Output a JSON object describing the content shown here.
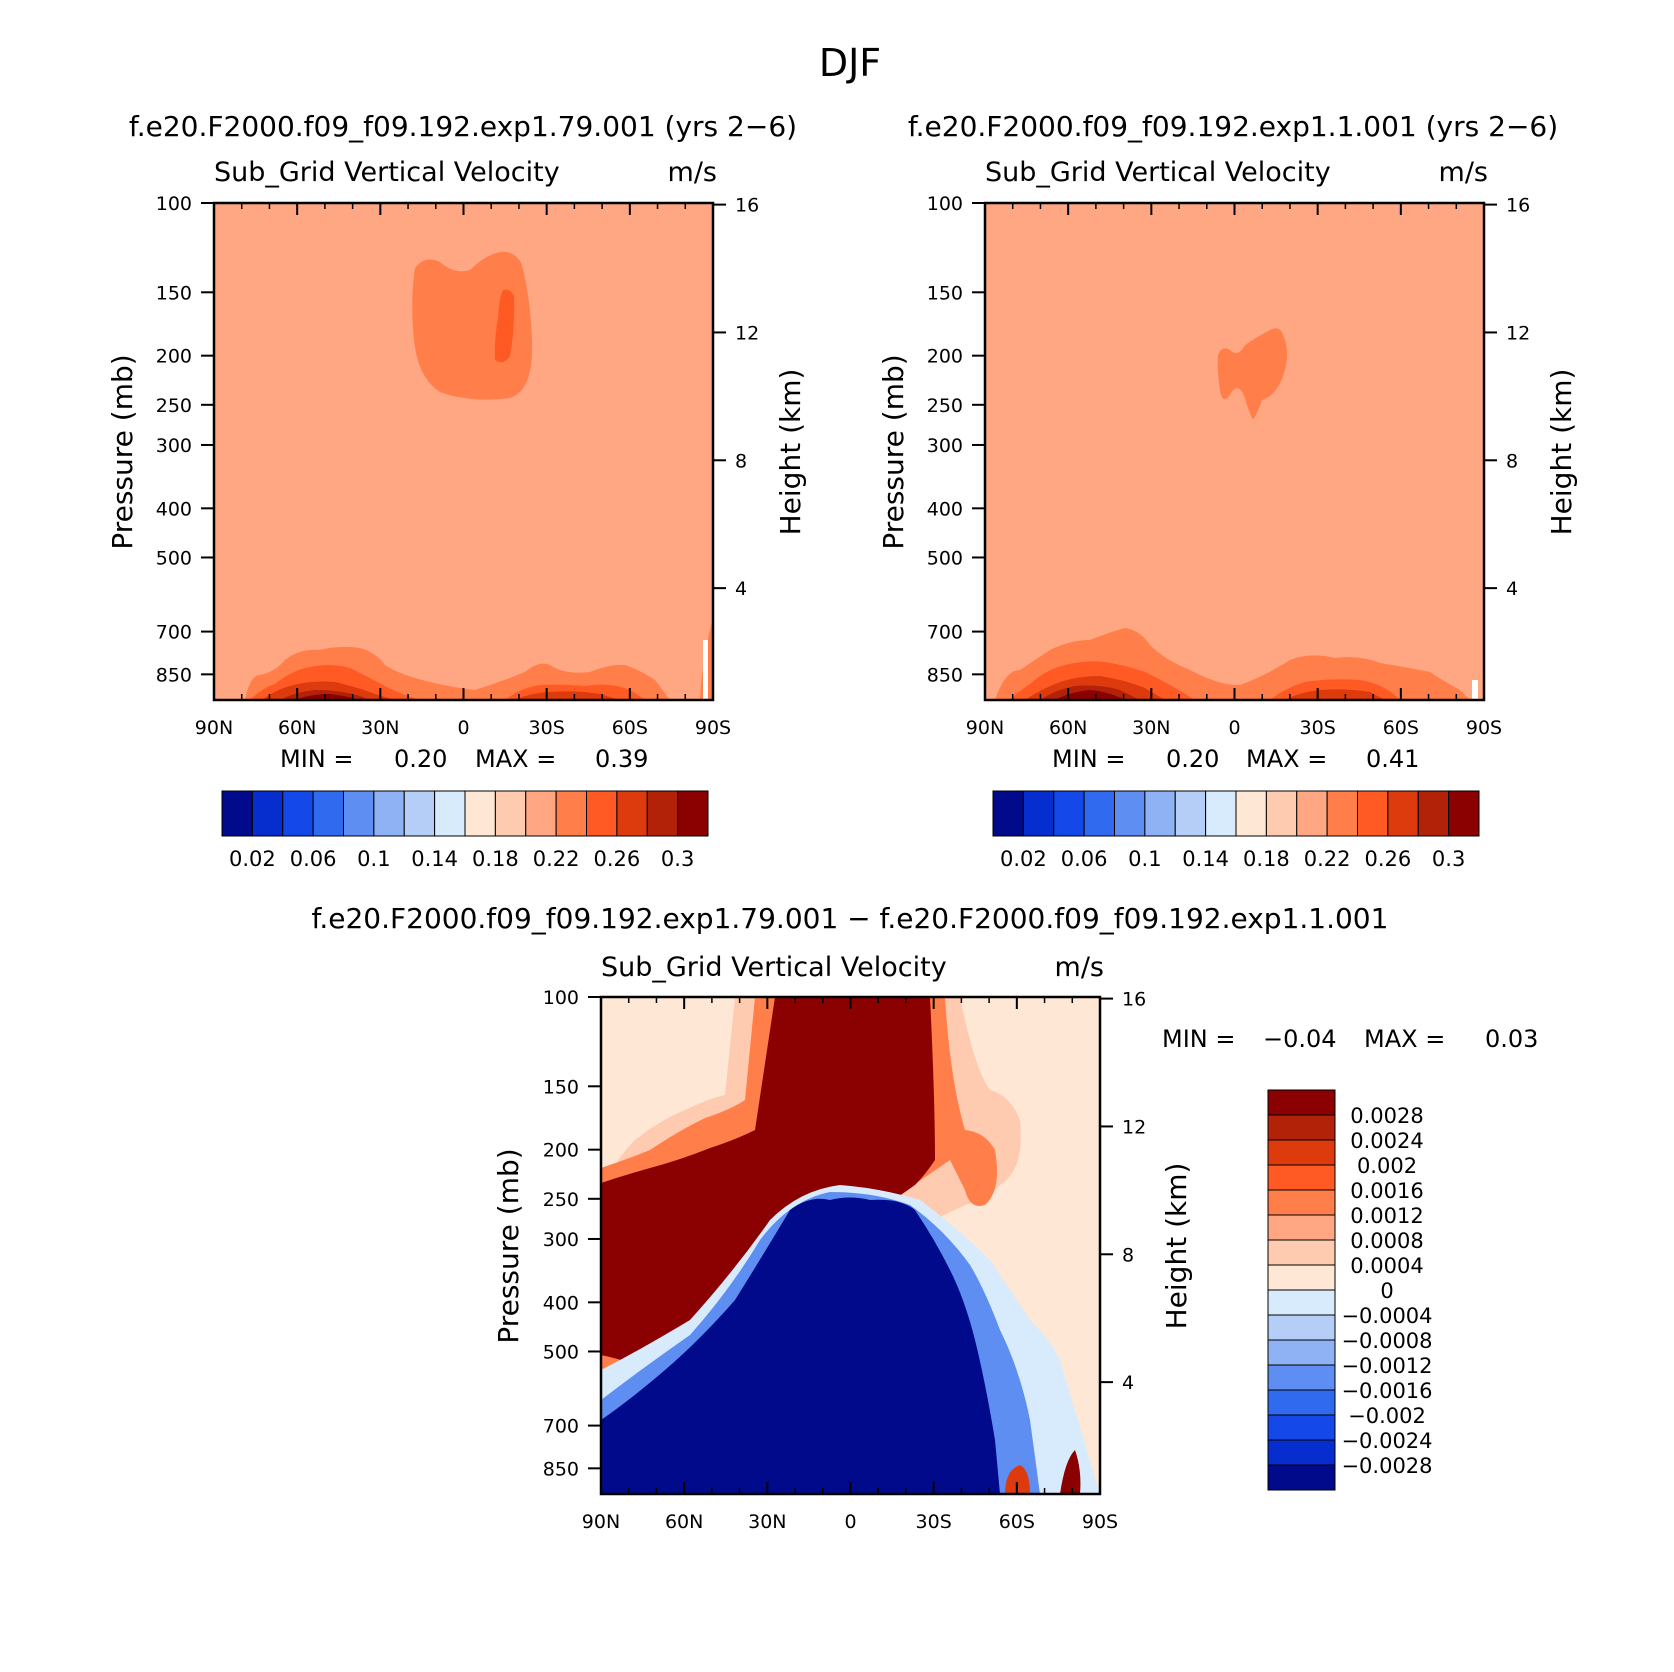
{
  "page_title": "DJF",
  "colors": {
    "pos_shades": [
      "#8b0000",
      "#b22208",
      "#dd3a0d",
      "#ff5a24",
      "#ff7e4a",
      "#ffa783",
      "#ffcbb0",
      "#ffe7d6"
    ],
    "neg_shades": [
      "#d8ebfc",
      "#b5cef8",
      "#8eb2f4",
      "#5e8ef1",
      "#2f6aef",
      "#1448e8",
      "#062ecf",
      "#000a8b"
    ]
  },
  "chart_data": [
    {
      "id": "left",
      "type": "contour",
      "case_title": "f.e20.F2000.f09_f09.192.exp1.79.001 (yrs 2−6)",
      "variable": "Sub_Grid Vertical Velocity",
      "units": "m/s",
      "ylabel": "Pressure (mb)",
      "y2label": "Height (km)",
      "x_ticks": [
        "90N",
        "60N",
        "30N",
        "0",
        "30S",
        "60S",
        "90S"
      ],
      "y_ticks": [
        "100",
        "150",
        "200",
        "250",
        "300",
        "400",
        "500",
        "700",
        "850"
      ],
      "y2_ticks": [
        "16",
        "12",
        "8",
        "4"
      ],
      "stats": {
        "min_label": "MIN =",
        "min": "0.20",
        "max_label": "MAX =",
        "max": "0.39"
      },
      "colorbar": {
        "orientation": "horizontal",
        "levels": [
          "0.02",
          "0.06",
          "0.1",
          "0.14",
          "0.18",
          "0.22",
          "0.26",
          "0.3"
        ],
        "colors": [
          "#000a8b",
          "#062ecf",
          "#1448e8",
          "#2f6aef",
          "#5e8ef1",
          "#8eb2f4",
          "#b5cef8",
          "#d8ebfc",
          "#ffe7d6",
          "#ffcbb0",
          "#ffa783",
          "#ff7e4a",
          "#ff5a24",
          "#dd3a0d",
          "#b22208",
          "#8b0000"
        ]
      },
      "background_value_range": "0.2-0.22",
      "features": [
        "upper-tropospheric maximum 0.22-0.26 near 10N-20S, 130-250 mb",
        "boundary-layer maxima up to 0.3+ near 60N-30N and 30S-60S"
      ]
    },
    {
      "id": "right",
      "type": "contour",
      "case_title": "f.e20.F2000.f09_f09.192.exp1.1.001 (yrs 2−6)",
      "variable": "Sub_Grid Vertical Velocity",
      "units": "m/s",
      "ylabel": "Pressure (mb)",
      "y2label": "Height (km)",
      "x_ticks": [
        "90N",
        "60N",
        "30N",
        "0",
        "30S",
        "60S",
        "90S"
      ],
      "y_ticks": [
        "100",
        "150",
        "200",
        "250",
        "300",
        "400",
        "500",
        "700",
        "850"
      ],
      "y2_ticks": [
        "16",
        "12",
        "8",
        "4"
      ],
      "stats": {
        "min_label": "MIN =",
        "min": "0.20",
        "max_label": "MAX =",
        "max": "0.41"
      },
      "colorbar": {
        "orientation": "horizontal",
        "levels": [
          "0.02",
          "0.06",
          "0.1",
          "0.14",
          "0.18",
          "0.22",
          "0.26",
          "0.3"
        ],
        "colors": [
          "#000a8b",
          "#062ecf",
          "#1448e8",
          "#2f6aef",
          "#5e8ef1",
          "#8eb2f4",
          "#b5cef8",
          "#d8ebfc",
          "#ffe7d6",
          "#ffcbb0",
          "#ffa783",
          "#ff7e4a",
          "#ff5a24",
          "#dd3a0d",
          "#b22208",
          "#8b0000"
        ]
      },
      "background_value_range": "0.2-0.22",
      "features": [
        "small upper-tropospheric maximum 0.22-0.26 near 0-15S, 190-250 mb",
        "boundary-layer maxima up to 0.3+ near 60N-30N"
      ]
    },
    {
      "id": "diff",
      "type": "contour",
      "case_title": "f.e20.F2000.f09_f09.192.exp1.79.001 − f.e20.F2000.f09_f09.192.exp1.1.001",
      "variable": "Sub_Grid Vertical Velocity",
      "units": "m/s",
      "ylabel": "Pressure (mb)",
      "y2label": "Height (km)",
      "x_ticks": [
        "90N",
        "60N",
        "30N",
        "0",
        "30S",
        "60S",
        "90S"
      ],
      "y_ticks": [
        "100",
        "150",
        "200",
        "250",
        "300",
        "400",
        "500",
        "700",
        "850"
      ],
      "y2_ticks": [
        "16",
        "12",
        "8",
        "4"
      ],
      "stats": {
        "min_label": "MIN =",
        "min": "−0.04",
        "max_label": "MAX =",
        "max": "0.03"
      },
      "colorbar": {
        "orientation": "vertical",
        "levels": [
          "0.0028",
          "0.0024",
          "0.002",
          "0.0016",
          "0.0012",
          "0.0008",
          "0.0004",
          "0",
          "−0.0004",
          "−0.0008",
          "−0.0012",
          "−0.0016",
          "−0.002",
          "−0.0024",
          "−0.0028"
        ],
        "colors": [
          "#8b0000",
          "#b22208",
          "#dd3a0d",
          "#ff5a24",
          "#ff7e4a",
          "#ffa783",
          "#ffcbb0",
          "#ffe7d6",
          "#d8ebfc",
          "#b5cef8",
          "#8eb2f4",
          "#5e8ef1",
          "#2f6aef",
          "#1448e8",
          "#062ecf",
          "#000a8b"
        ]
      },
      "features": [
        "positive > 0.0028 above ~250 mb from 30N to 30S and in NH mid-latitudes 250-500 mb",
        "negative < −0.0028 below ~250 mb in tropics and lower troposphere"
      ]
    }
  ]
}
